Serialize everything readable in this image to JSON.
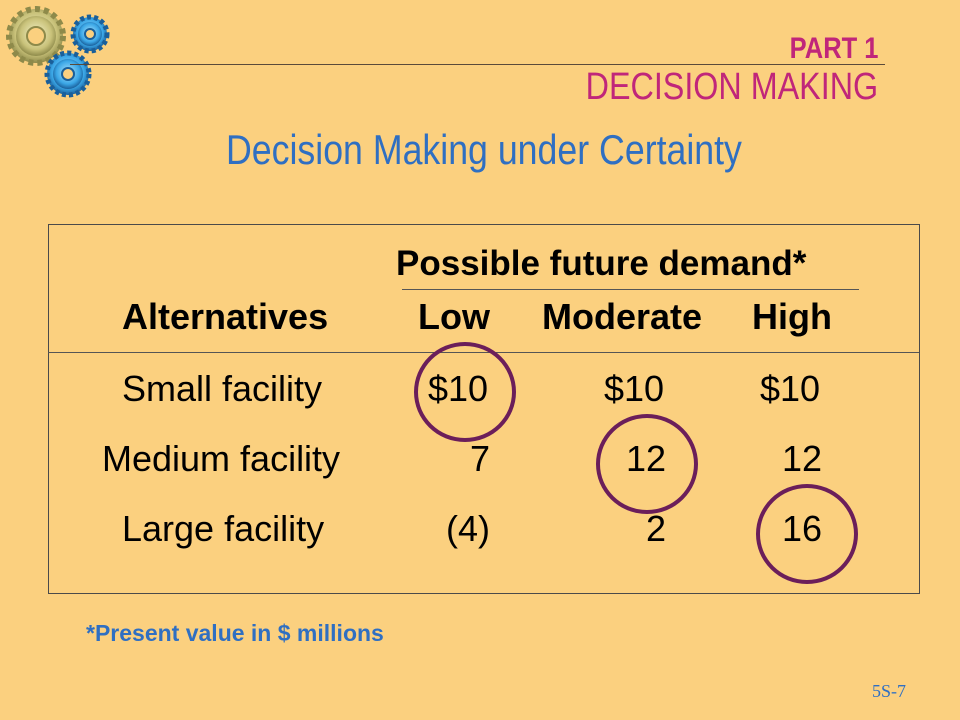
{
  "header": {
    "part": "PART 1",
    "section": "DECISION MAKING"
  },
  "title": "Decision Making under Certainty",
  "table": {
    "group_header": "Possible future demand*",
    "columns": [
      "Alternatives",
      "Low",
      "Moderate",
      "High"
    ],
    "rows": [
      {
        "label": "Small facility",
        "values": [
          "$10",
          "$10",
          "$10"
        ]
      },
      {
        "label": "Medium facility",
        "values": [
          "7",
          "12",
          "12"
        ]
      },
      {
        "label": "Large facility",
        "values": [
          "(4)",
          "2",
          "16"
        ]
      }
    ],
    "highlighted": [
      {
        "row": "Small facility",
        "column": "Low"
      },
      {
        "row": "Medium facility",
        "column": "Moderate"
      },
      {
        "row": "Large facility",
        "column": "High"
      }
    ],
    "highlight_color": "#6B1E5A"
  },
  "footnote": "*Present value in $ millions",
  "slide_number": "5S-7",
  "colors": {
    "background": "#FBD07F",
    "accent_magenta": "#C0267A",
    "accent_blue": "#2F6FC2"
  },
  "decor": {
    "logo": "gears-icon"
  }
}
